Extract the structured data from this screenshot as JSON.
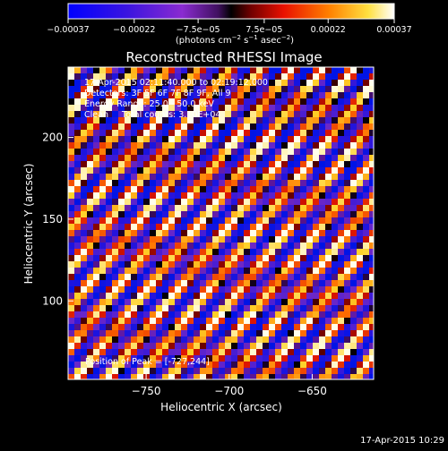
{
  "chart_data": {
    "type": "heatmap",
    "title": "Reconstructed RHESSI Image",
    "xlabel": "Heliocentric X (arcsec)",
    "ylabel": "Heliocentric Y (arcsec)",
    "xlim": [
      -797,
      -613
    ],
    "ylim": [
      52,
      243
    ],
    "xticks": [
      -750,
      -700,
      -650
    ],
    "xtick_labels": [
      "−750",
      "−700",
      "−650"
    ],
    "yticks": [
      100,
      150,
      200
    ],
    "ytick_labels": [
      "100",
      "150",
      "200"
    ],
    "colorbar": {
      "min": -0.00037,
      "max": 0.00037,
      "ticks": [
        -0.00037,
        -0.00022,
        -7.5e-05,
        7.5e-05,
        0.00022,
        0.00037
      ],
      "tick_labels": [
        "−0.00037",
        "−0.00022",
        "−7.5e−05",
        "7.5e−05",
        "0.00022",
        "0.00037"
      ],
      "units_text": "(photons cm",
      "units_sup1": "−2",
      "units_mid": " s",
      "units_sup2": "−1",
      "units_end": " asec",
      "units_sup3": "−2",
      "units_close": ")"
    },
    "annotations": [
      "17-Apr-2015 02:11:40.000 to 02:19:12.000",
      "Detectors: 3F 5F 6F 7F 8F 9F, All 9",
      "Energy Range: 25.0 - 50.0 keV",
      "Clean     Total counts: 3.10E+04"
    ],
    "peak_label": "Position of Peak = [-727,244]",
    "timestamp": "17-Apr-2015 10:29",
    "colors": {
      "background": "#000000",
      "foreground": "#ffffff",
      "low": "#0018d8",
      "mid_low": "#7a18c8",
      "zero": "#000000",
      "mid_high": "#e01000",
      "high": "#ffffff"
    }
  }
}
